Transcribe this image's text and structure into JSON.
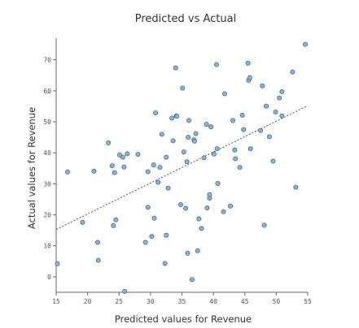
{
  "chart_data": {
    "type": "scatter",
    "title": "Predicted vs Actual",
    "xlabel": "Predicted values for Revenue",
    "ylabel": "Actual values for Revenue",
    "xlim": [
      15,
      55
    ],
    "ylim": [
      -5,
      77
    ],
    "xticks": [
      "15",
      "20",
      "25",
      "30",
      "35",
      "40",
      "45",
      "50",
      "55"
    ],
    "yticks": [
      "0",
      "10",
      "20",
      "30",
      "40",
      "50",
      "60",
      "70"
    ],
    "trend_line": {
      "x": [
        15,
        55
      ],
      "y": [
        15.3,
        55.2
      ],
      "style": "dashed"
    },
    "point_color": "#8fb3d0",
    "point_edge_color": "#3f6f95",
    "grid": false,
    "points": [
      {
        "x": 15.2,
        "y": 4.2
      },
      {
        "x": 16.8,
        "y": 33.8
      },
      {
        "x": 19.2,
        "y": 17.6
      },
      {
        "x": 21.0,
        "y": 34.1
      },
      {
        "x": 21.6,
        "y": 11.1
      },
      {
        "x": 21.7,
        "y": 5.3
      },
      {
        "x": 23.3,
        "y": 43.2
      },
      {
        "x": 23.9,
        "y": 35.8
      },
      {
        "x": 24.1,
        "y": 16.5
      },
      {
        "x": 24.3,
        "y": 33.6
      },
      {
        "x": 24.5,
        "y": 18.4
      },
      {
        "x": 25.1,
        "y": 39.3
      },
      {
        "x": 25.6,
        "y": 38.6
      },
      {
        "x": 25.8,
        "y": 35.4
      },
      {
        "x": 26.3,
        "y": 39.7
      },
      {
        "x": 25.9,
        "y": -4.7
      },
      {
        "x": 28.0,
        "y": 39.5
      },
      {
        "x": 29.2,
        "y": 11.1
      },
      {
        "x": 29.6,
        "y": 33.9
      },
      {
        "x": 29.6,
        "y": 22.4
      },
      {
        "x": 30.2,
        "y": 13.0
      },
      {
        "x": 30.6,
        "y": 18.9
      },
      {
        "x": 30.5,
        "y": 36.1
      },
      {
        "x": 30.8,
        "y": 52.9
      },
      {
        "x": 31.2,
        "y": 30.5
      },
      {
        "x": 31.5,
        "y": 35.3
      },
      {
        "x": 31.8,
        "y": 46.0
      },
      {
        "x": 32.3,
        "y": 4.3
      },
      {
        "x": 32.5,
        "y": 13.4
      },
      {
        "x": 32.5,
        "y": 38.6
      },
      {
        "x": 32.8,
        "y": 28.6
      },
      {
        "x": 33.4,
        "y": 51.2
      },
      {
        "x": 33.6,
        "y": 43.9
      },
      {
        "x": 34.1,
        "y": 51.9
      },
      {
        "x": 34.2,
        "y": 51.8
      },
      {
        "x": 34.0,
        "y": 67.4
      },
      {
        "x": 34.8,
        "y": 23.3
      },
      {
        "x": 35.1,
        "y": 60.9
      },
      {
        "x": 35.3,
        "y": 40.3
      },
      {
        "x": 35.6,
        "y": 22.1
      },
      {
        "x": 35.8,
        "y": 37.1
      },
      {
        "x": 35.9,
        "y": 7.6
      },
      {
        "x": 36.0,
        "y": 45.0
      },
      {
        "x": 36.1,
        "y": 50.4
      },
      {
        "x": 36.6,
        "y": -0.9
      },
      {
        "x": 36.9,
        "y": 44.2
      },
      {
        "x": 37.0,
        "y": 43.8
      },
      {
        "x": 37.2,
        "y": 46.2
      },
      {
        "x": 37.5,
        "y": 8.4
      },
      {
        "x": 37.7,
        "y": 18.7
      },
      {
        "x": 38.1,
        "y": 15.6
      },
      {
        "x": 38.5,
        "y": 38.4
      },
      {
        "x": 38.9,
        "y": 49.2
      },
      {
        "x": 39.0,
        "y": 22.2
      },
      {
        "x": 39.4,
        "y": 25.4
      },
      {
        "x": 39.4,
        "y": 26.5
      },
      {
        "x": 39.6,
        "y": 48.4
      },
      {
        "x": 40.1,
        "y": 39.6
      },
      {
        "x": 40.5,
        "y": 68.5
      },
      {
        "x": 40.7,
        "y": 30.1
      },
      {
        "x": 40.6,
        "y": 41.3
      },
      {
        "x": 41.6,
        "y": 21.0
      },
      {
        "x": 41.8,
        "y": 59.1
      },
      {
        "x": 42.7,
        "y": 22.8
      },
      {
        "x": 43.1,
        "y": 50.4
      },
      {
        "x": 43.4,
        "y": 40.9
      },
      {
        "x": 43.5,
        "y": 38.1
      },
      {
        "x": 44.2,
        "y": 35.3
      },
      {
        "x": 44.6,
        "y": 52.1
      },
      {
        "x": 44.8,
        "y": 47.5
      },
      {
        "x": 45.5,
        "y": 68.9
      },
      {
        "x": 45.6,
        "y": 63.4
      },
      {
        "x": 45.8,
        "y": 64.2
      },
      {
        "x": 45.9,
        "y": 41.3
      },
      {
        "x": 47.5,
        "y": 47.2
      },
      {
        "x": 47.8,
        "y": 61.6
      },
      {
        "x": 48.1,
        "y": 16.6
      },
      {
        "x": 48.4,
        "y": 55.1
      },
      {
        "x": 48.9,
        "y": 45.2
      },
      {
        "x": 49.5,
        "y": 37.3
      },
      {
        "x": 49.9,
        "y": 53.2
      },
      {
        "x": 50.5,
        "y": 57.7
      },
      {
        "x": 50.9,
        "y": 59.7
      },
      {
        "x": 50.9,
        "y": 51.9
      },
      {
        "x": 52.6,
        "y": 66.1
      },
      {
        "x": 53.1,
        "y": 28.9
      },
      {
        "x": 54.6,
        "y": 75.0
      }
    ]
  }
}
